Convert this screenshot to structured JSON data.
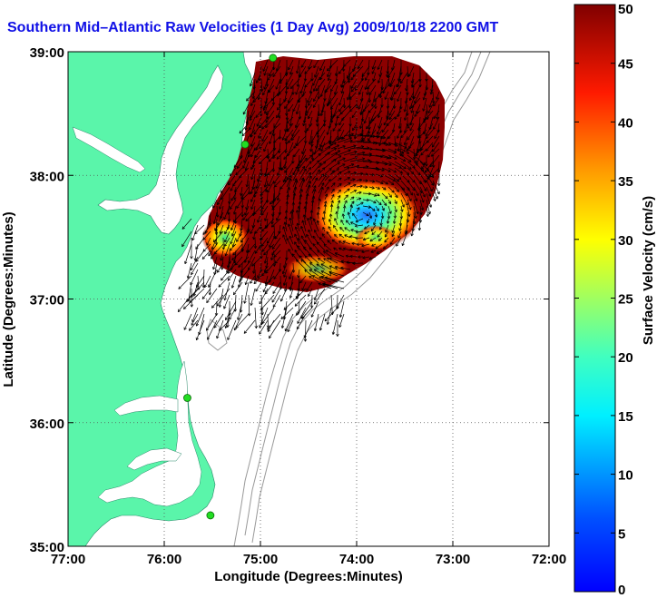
{
  "chart_data": {
    "type": "heatmap",
    "title": "Southern Mid–Atlantic Raw Velocities (1 Day Avg) 2009/10/18 2200 GMT",
    "xlabel": "Longitude (Degrees:Minutes)",
    "ylabel": "Latitude (Degrees:Minutes)",
    "x_ticks": [
      "77:00",
      "76:00",
      "75:00",
      "74:00",
      "73:00",
      "72:00"
    ],
    "y_ticks": [
      "39:00",
      "38:00",
      "37:00",
      "36:00",
      "35:00"
    ],
    "xlim": [
      -77,
      -72
    ],
    "ylim": [
      35,
      39
    ],
    "grid": "dotted",
    "colorbar": {
      "label": "Surface Velocity (cm/s)",
      "ticks": [
        "0",
        "5",
        "10",
        "15",
        "20",
        "25",
        "30",
        "35",
        "40",
        "45",
        "50"
      ],
      "range": [
        0,
        50
      ],
      "colormap": "jet"
    },
    "colors": {
      "land": "#5af5aa",
      "ocean": "#ffffff",
      "bathymetry": "#999999",
      "grid": "#555555",
      "station_marker": "#22dd22",
      "title": "#1010e6"
    },
    "stations": [
      {
        "lon": -74.87,
        "lat": 38.95
      },
      {
        "lon": -75.16,
        "lat": 38.25
      },
      {
        "lon": -75.76,
        "lat": 36.2
      },
      {
        "lon": -75.52,
        "lat": 35.25
      }
    ],
    "velocity_field": {
      "background_speed_cms": 50,
      "slow_zones": [
        {
          "label": "low-speed eddy",
          "center_lon": -73.95,
          "center_lat": 37.68,
          "min_speed_cms": 10
        },
        {
          "label": "nearshore low",
          "center_lon": -75.43,
          "center_lat": 37.48,
          "min_speed_cms": 22
        }
      ]
    }
  }
}
